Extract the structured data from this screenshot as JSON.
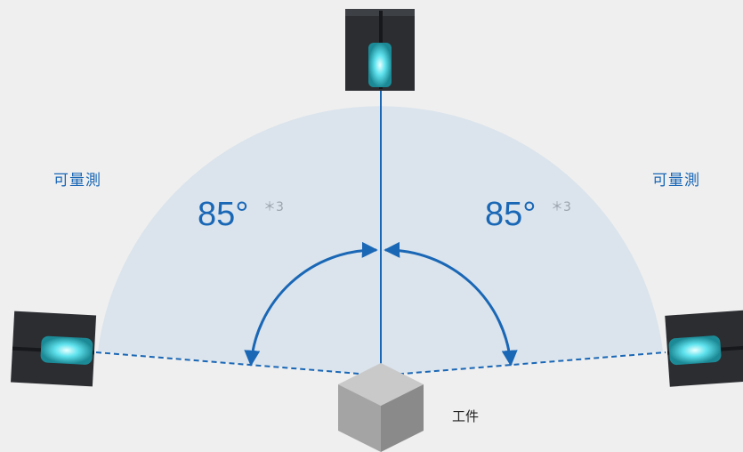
{
  "labels": {
    "measurable_left": "可量測",
    "measurable_right": "可量測",
    "angle_left": "85°",
    "angle_right": "85°",
    "note_left": "＊3",
    "note_right": "＊3",
    "workpiece": "工件"
  },
  "colors": {
    "background": "#efefef",
    "fan_fill": "#dbe4ec",
    "accent_blue": "#1a67b6",
    "sensor_body": "#2b2d31",
    "beam_glow": "#39d2e3",
    "cube_top": "#c9c9c9",
    "cube_left": "#a4a4a4",
    "cube_right": "#8a8a8a"
  },
  "icons": [
    "sensor-head-icon",
    "workpiece-cube-icon"
  ]
}
